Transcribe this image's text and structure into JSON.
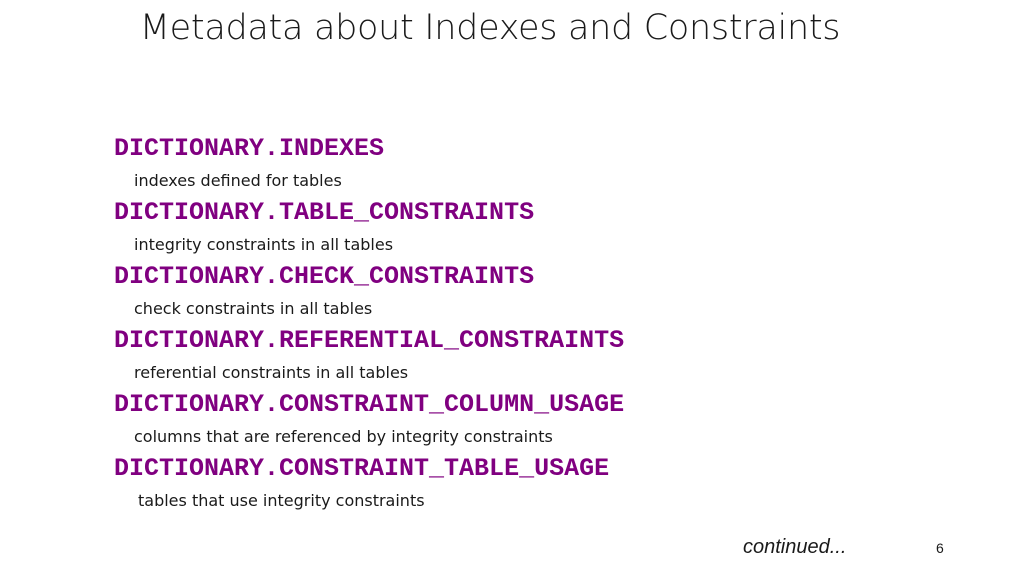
{
  "slide": {
    "title": "Metadata about Indexes and Constraints",
    "entries": [
      {
        "name": "DICTIONARY.INDEXES",
        "description": "indexes defined for tables"
      },
      {
        "name": "DICTIONARY.TABLE_CONSTRAINTS",
        "description": "integrity constraints in all tables"
      },
      {
        "name": "DICTIONARY.CHECK_CONSTRAINTS",
        "description": "check constraints in all tables"
      },
      {
        "name": "DICTIONARY.REFERENTIAL_CONSTRAINTS",
        "description": "referential constraints in all tables"
      },
      {
        "name": "DICTIONARY.CONSTRAINT_COLUMN_USAGE",
        "description": "columns that are referenced by integrity constraints"
      },
      {
        "name": "DICTIONARY.CONSTRAINT_TABLE_USAGE",
        "description": "tables that use integrity constraints"
      }
    ],
    "continued": "continued...",
    "page_number": "6",
    "colors": {
      "entry_name": "#800080",
      "text": "#1a1a1a",
      "background": "#ffffff"
    }
  }
}
